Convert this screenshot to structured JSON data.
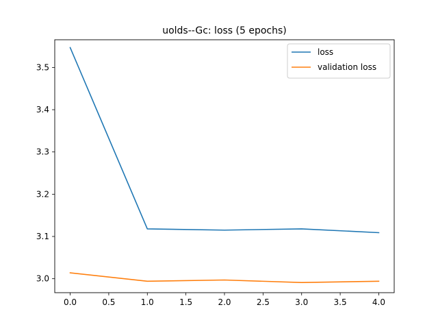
{
  "chart_data": {
    "type": "line",
    "title": "uolds--Gc: loss (5 epochs)",
    "xlabel": "",
    "ylabel": "",
    "x": [
      0,
      1,
      2,
      3,
      4
    ],
    "xlim": [
      -0.2,
      4.2
    ],
    "ylim": [
      2.967,
      3.5655
    ],
    "x_ticks": [
      "0.0",
      "0.5",
      "1.0",
      "1.5",
      "2.0",
      "2.5",
      "3.0",
      "3.5",
      "4.0"
    ],
    "y_ticks": [
      "3.0",
      "3.1",
      "3.2",
      "3.3",
      "3.4",
      "3.5"
    ],
    "grid": false,
    "legend_position": "top-right",
    "series": [
      {
        "name": "loss",
        "color": "#1f77b4",
        "values": [
          3.547,
          3.118,
          3.115,
          3.118,
          3.109
        ]
      },
      {
        "name": "validation loss",
        "color": "#ff7f0e",
        "values": [
          3.014,
          2.994,
          2.997,
          2.991,
          2.994
        ]
      }
    ]
  }
}
